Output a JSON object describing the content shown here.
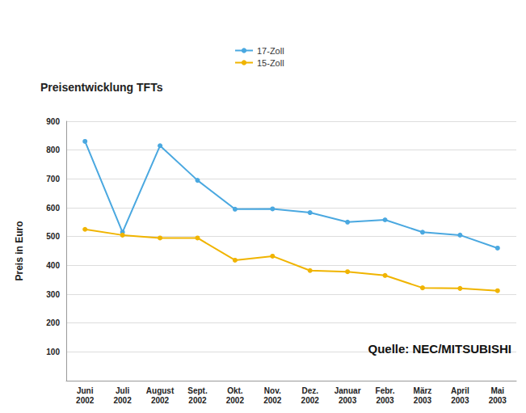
{
  "chart_data": {
    "type": "line",
    "title": "Preisentwicklung TFTs",
    "y_label": "Preis in Euro",
    "annotations": [
      "Quelle: NEC/MITSUBISHI"
    ],
    "categories": [
      "Juni 2002",
      "Juli 2002",
      "August 2002",
      "Sept. 2002",
      "Okt. 2002",
      "Nov. 2002",
      "Dez. 2002",
      "Januar 2003",
      "Febr. 2003",
      "März 2003",
      "April 2003",
      "Mai 2003"
    ],
    "series": [
      {
        "name": "17-Zoll",
        "color": "#4aa8e0",
        "values": [
          830,
          515,
          815,
          695,
          595,
          596,
          583,
          550,
          558,
          515,
          505,
          460
        ]
      },
      {
        "name": "15-Zoll",
        "color": "#f0b400",
        "values": [
          525,
          505,
          495,
          495,
          418,
          432,
          382,
          378,
          365,
          322,
          320,
          312
        ]
      }
    ],
    "ylim": [
      0,
      900
    ],
    "yticks": [
      100,
      200,
      300,
      400,
      500,
      600,
      700,
      800,
      900
    ],
    "grid": true,
    "legend": "top",
    "marker": "circle"
  }
}
